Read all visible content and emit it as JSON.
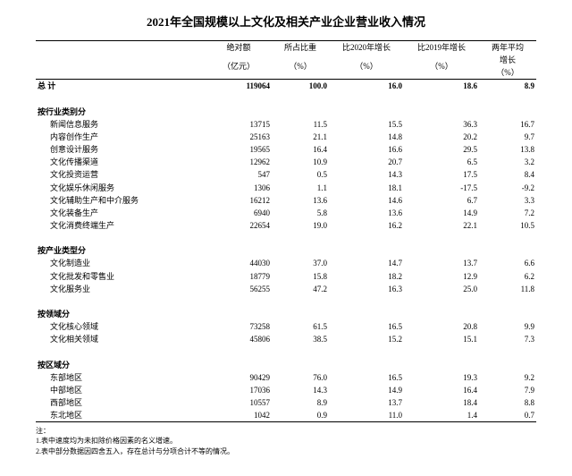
{
  "title": "2021年全国规模以上文化及相关产业企业营业收入情况",
  "headers": {
    "abs_l1": "绝对额",
    "abs_l2": "（亿元）",
    "share_l1": "所占比重",
    "share_l2": "（%）",
    "g20_l1": "比2020年增长",
    "g20_l2": "（%）",
    "g19_l1": "比2019年增长",
    "g19_l2": "（%）",
    "avg_l1": "两年平均",
    "avg_l2": "增长",
    "avg_l3": "（%）"
  },
  "total": {
    "label": "总  计",
    "abs": "119064",
    "share": "100.0",
    "g20": "16.0",
    "g19": "18.6",
    "avg": "8.9"
  },
  "sections": [
    {
      "heading": "按行业类别分",
      "rows": [
        {
          "label": "新闻信息服务",
          "abs": "13715",
          "share": "11.5",
          "g20": "15.5",
          "g19": "36.3",
          "avg": "16.7"
        },
        {
          "label": "内容创作生产",
          "abs": "25163",
          "share": "21.1",
          "g20": "14.8",
          "g19": "20.2",
          "avg": "9.7"
        },
        {
          "label": "创意设计服务",
          "abs": "19565",
          "share": "16.4",
          "g20": "16.6",
          "g19": "29.5",
          "avg": "13.8"
        },
        {
          "label": "文化传播渠道",
          "abs": "12962",
          "share": "10.9",
          "g20": "20.7",
          "g19": "6.5",
          "avg": "3.2"
        },
        {
          "label": "文化投资运营",
          "abs": "547",
          "share": "0.5",
          "g20": "14.3",
          "g19": "17.5",
          "avg": "8.4"
        },
        {
          "label": "文化娱乐休闲服务",
          "abs": "1306",
          "share": "1.1",
          "g20": "18.1",
          "g19": "-17.5",
          "avg": "-9.2"
        },
        {
          "label": "文化辅助生产和中介服务",
          "abs": "16212",
          "share": "13.6",
          "g20": "14.6",
          "g19": "6.7",
          "avg": "3.3"
        },
        {
          "label": "文化装备生产",
          "abs": "6940",
          "share": "5.8",
          "g20": "13.6",
          "g19": "14.9",
          "avg": "7.2"
        },
        {
          "label": "文化消费终端生产",
          "abs": "22654",
          "share": "19.0",
          "g20": "16.2",
          "g19": "22.1",
          "avg": "10.5"
        }
      ]
    },
    {
      "heading": "按产业类型分",
      "rows": [
        {
          "label": "文化制造业",
          "abs": "44030",
          "share": "37.0",
          "g20": "14.7",
          "g19": "13.7",
          "avg": "6.6"
        },
        {
          "label": "文化批发和零售业",
          "abs": "18779",
          "share": "15.8",
          "g20": "18.2",
          "g19": "12.9",
          "avg": "6.2"
        },
        {
          "label": "文化服务业",
          "abs": "56255",
          "share": "47.2",
          "g20": "16.3",
          "g19": "25.0",
          "avg": "11.8"
        }
      ]
    },
    {
      "heading": "按领域分",
      "rows": [
        {
          "label": "文化核心领域",
          "abs": "73258",
          "share": "61.5",
          "g20": "16.5",
          "g19": "20.8",
          "avg": "9.9"
        },
        {
          "label": "文化相关领域",
          "abs": "45806",
          "share": "38.5",
          "g20": "15.2",
          "g19": "15.1",
          "avg": "7.3"
        }
      ]
    },
    {
      "heading": "按区域分",
      "rows": [
        {
          "label": "东部地区",
          "abs": "90429",
          "share": "76.0",
          "g20": "16.5",
          "g19": "19.3",
          "avg": "9.2"
        },
        {
          "label": "中部地区",
          "abs": "17036",
          "share": "14.3",
          "g20": "14.9",
          "g19": "16.4",
          "avg": "7.9"
        },
        {
          "label": "西部地区",
          "abs": "10557",
          "share": "8.9",
          "g20": "13.7",
          "g19": "18.4",
          "avg": "8.8"
        },
        {
          "label": "东北地区",
          "abs": "1042",
          "share": "0.9",
          "g20": "11.0",
          "g19": "1.4",
          "avg": "0.7"
        }
      ]
    }
  ],
  "notes": {
    "heading": "注：",
    "n1": "1.表中速度均为未扣除价格因素的名义增速。",
    "n2": "2.表中部分数据因四舍五入，存在总计与分项合计不等的情况。"
  }
}
